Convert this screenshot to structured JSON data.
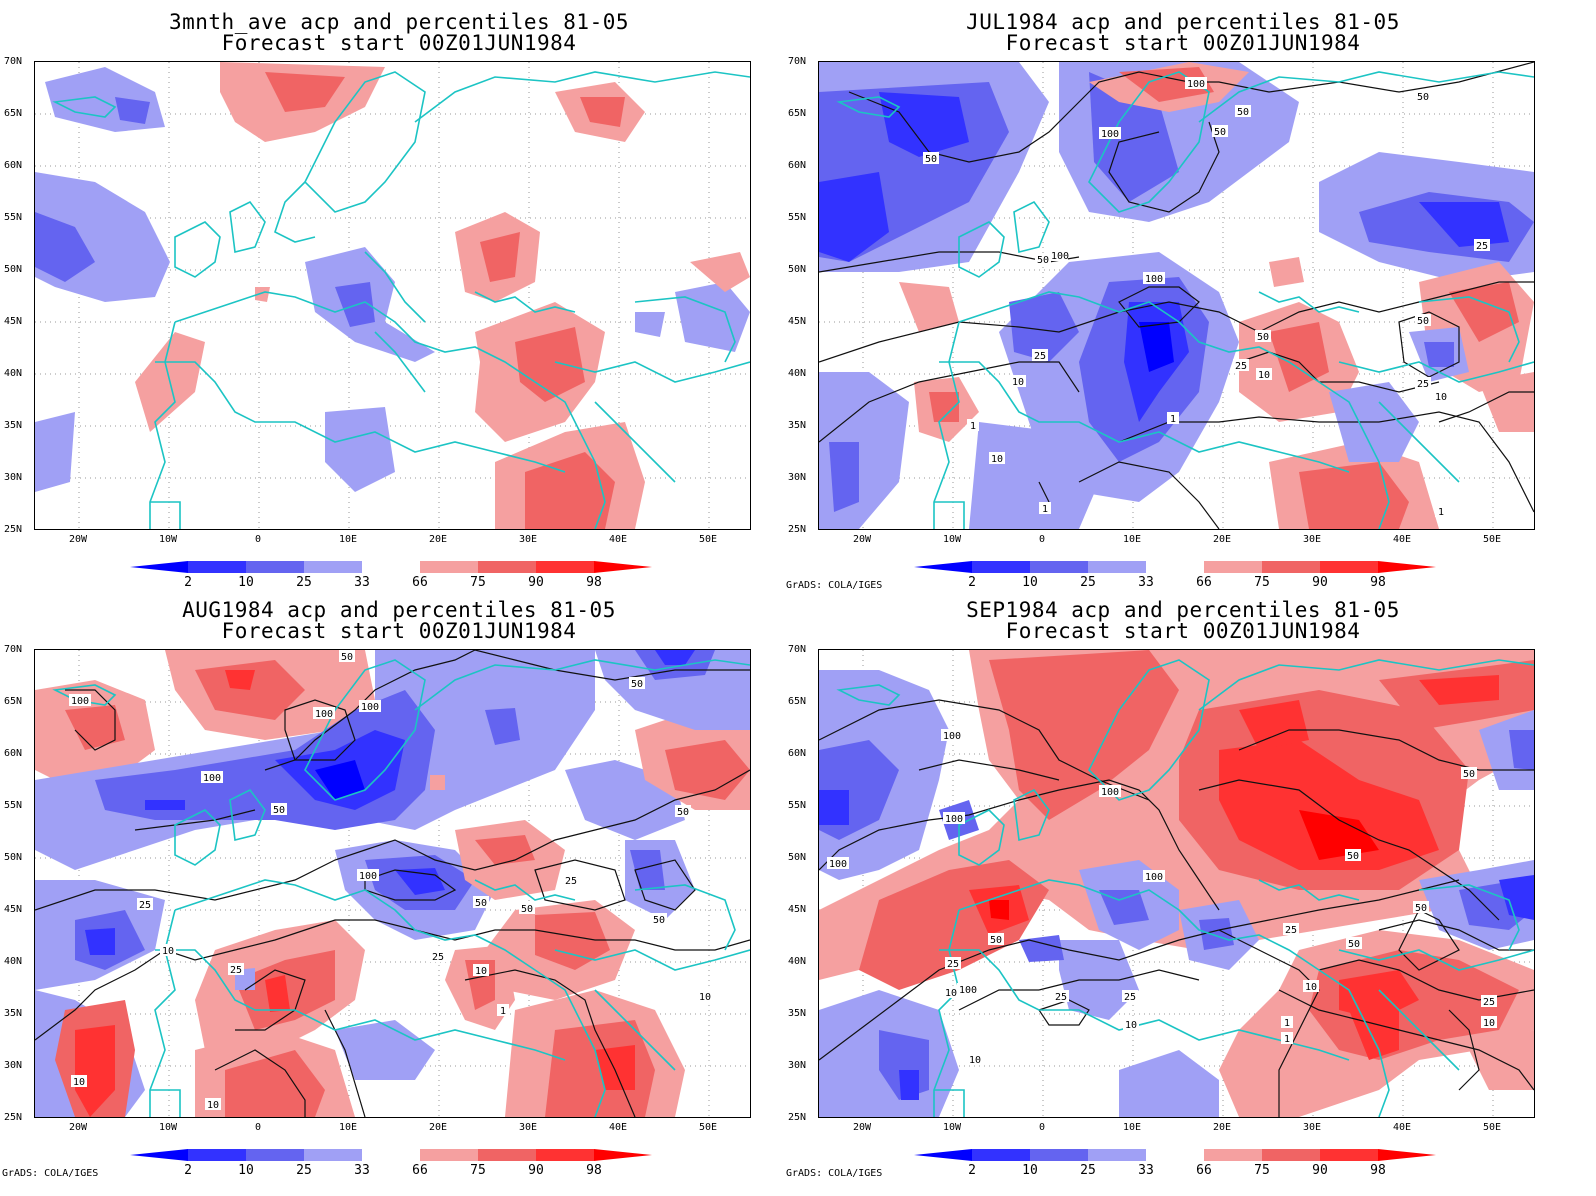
{
  "panels": [
    {
      "title_line1": "3mnth_ave acp and percentiles 81-05",
      "title_line2": "Forecast start 00Z01JUN1984",
      "credit": ""
    },
    {
      "title_line1": "JUL1984 acp and percentiles 81-05",
      "title_line2": "Forecast start 00Z01JUN1984",
      "credit": "GrADS: COLA/IGES"
    },
    {
      "title_line1": "AUG1984 acp and percentiles 81-05",
      "title_line2": "Forecast start 00Z01JUN1984",
      "credit": "GrADS: COLA/IGES"
    },
    {
      "title_line1": "SEP1984 acp and percentiles 81-05",
      "title_line2": "Forecast start 00Z01JUN1984",
      "credit": "GrADS: COLA/IGES"
    }
  ],
  "lat_labels": [
    "70N",
    "65N",
    "60N",
    "55N",
    "50N",
    "45N",
    "40N",
    "35N",
    "30N",
    "25N"
  ],
  "lon_labels": [
    "20W",
    "10W",
    "0",
    "10E",
    "20E",
    "30E",
    "40E",
    "50E"
  ],
  "colorbar": {
    "labels": [
      "2",
      "10",
      "25",
      "33",
      "66",
      "75",
      "90",
      "98"
    ],
    "colors": [
      "#0000ff",
      "#3232ff",
      "#6464f0",
      "#a0a0f5",
      "#ffffff",
      "#f5a0a0",
      "#f06464",
      "#ff3232",
      "#ff0000"
    ]
  },
  "contour_labels": {
    "p2": [
      "100",
      "50",
      "100",
      "50",
      "50",
      "50",
      "100",
      "50",
      "100",
      "50",
      "25",
      "10",
      "25",
      "10",
      "1",
      "1",
      "10",
      "50",
      "25",
      "10",
      "1",
      "25",
      "1"
    ],
    "p3": [
      "50",
      "100",
      "100",
      "100",
      "50",
      "100",
      "50",
      "50",
      "100",
      "50",
      "25",
      "25",
      "50",
      "50",
      "10",
      "25",
      "25",
      "10",
      "1",
      "10",
      "10",
      "10"
    ],
    "p4": [
      "100",
      "100",
      "100",
      "50",
      "100",
      "100",
      "50",
      "50",
      "50",
      "100",
      "50",
      "25",
      "25",
      "25",
      "10",
      "10",
      "25",
      "10",
      "1",
      "1",
      "25",
      "10",
      "10"
    ]
  }
}
